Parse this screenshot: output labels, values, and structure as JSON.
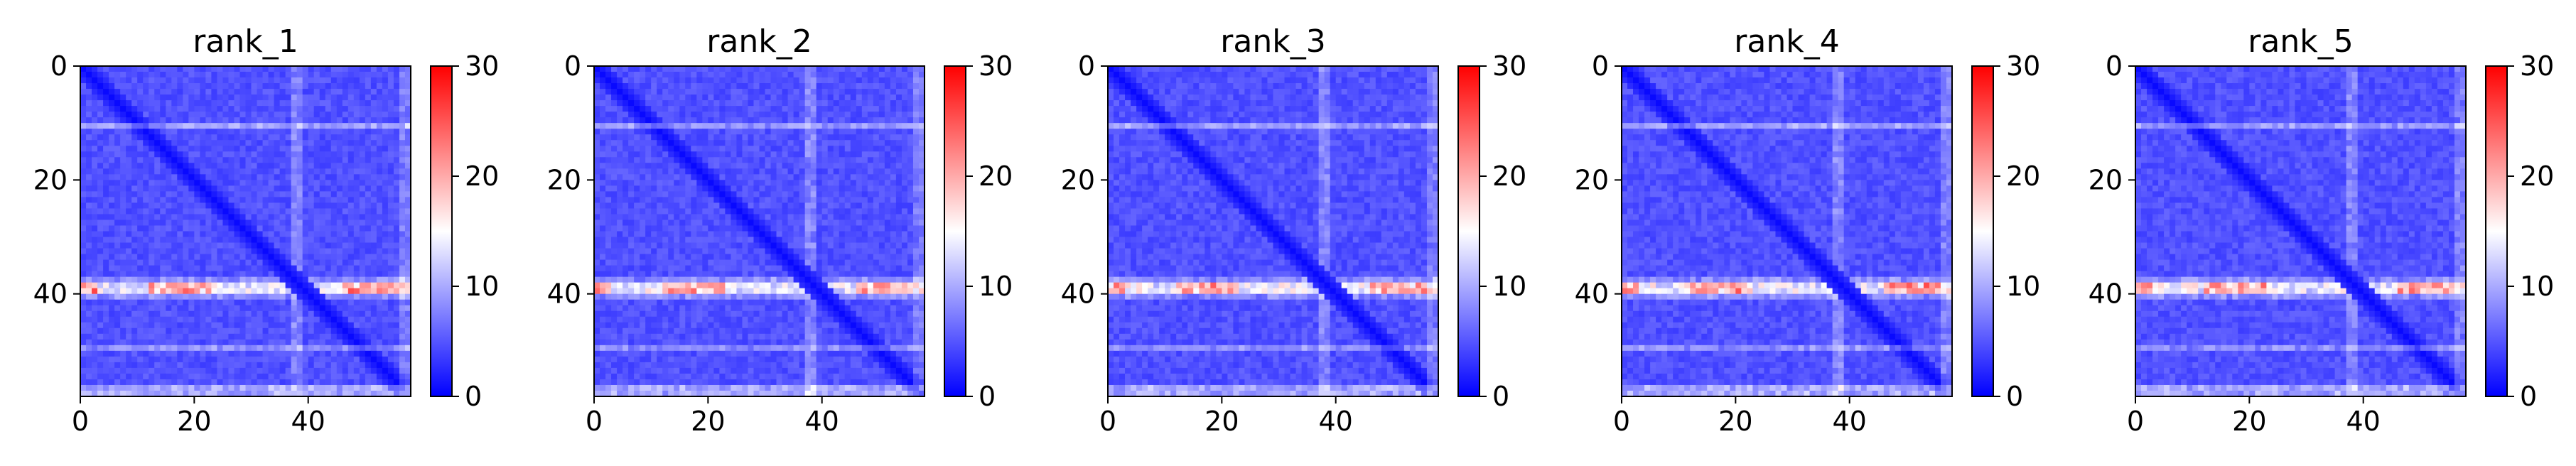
{
  "chart_data": [
    {
      "type": "heatmap",
      "title": "rank_1",
      "shape": [
        58,
        58
      ],
      "xticks": [
        0,
        20,
        40
      ],
      "yticks": [
        0,
        20,
        40
      ],
      "colorbar": {
        "ticks": [
          0,
          10,
          20,
          30
        ],
        "range": [
          0,
          30
        ],
        "colormap": "bwr"
      },
      "x_range": [
        0,
        58
      ],
      "y_range": [
        0,
        58
      ],
      "features": {
        "diagonal": "dark blue (~0-2)",
        "background": "blue (~3-6)",
        "bright_rows": [
          {
            "row": 38,
            "level": "white-red (10-22)"
          },
          {
            "row": 39,
            "level": "white-red (10-22)"
          },
          {
            "row": 10,
            "level": "light (7-11)"
          },
          {
            "row": 49,
            "level": "light (7-10)"
          },
          {
            "row": 56,
            "level": "light (8-12)"
          }
        ],
        "bright_cols": [
          {
            "col": 37,
            "level": "light (7-10)"
          }
        ]
      }
    },
    {
      "type": "heatmap",
      "title": "rank_2",
      "shape": [
        58,
        58
      ],
      "xticks": [
        0,
        20,
        40
      ],
      "yticks": [
        0,
        20,
        40
      ],
      "colorbar": {
        "ticks": [
          0,
          10,
          20,
          30
        ],
        "range": [
          0,
          30
        ],
        "colormap": "bwr"
      },
      "x_range": [
        0,
        58
      ],
      "y_range": [
        0,
        58
      ]
    },
    {
      "type": "heatmap",
      "title": "rank_3",
      "shape": [
        58,
        58
      ],
      "xticks": [
        0,
        20,
        40
      ],
      "yticks": [
        0,
        20,
        40
      ],
      "colorbar": {
        "ticks": [
          0,
          10,
          20,
          30
        ],
        "range": [
          0,
          30
        ],
        "colormap": "bwr"
      },
      "x_range": [
        0,
        58
      ],
      "y_range": [
        0,
        58
      ]
    },
    {
      "type": "heatmap",
      "title": "rank_4",
      "shape": [
        58,
        58
      ],
      "xticks": [
        0,
        20,
        40
      ],
      "yticks": [
        0,
        20,
        40
      ],
      "colorbar": {
        "ticks": [
          0,
          10,
          20,
          30
        ],
        "range": [
          0,
          30
        ],
        "colormap": "bwr"
      },
      "x_range": [
        0,
        58
      ],
      "y_range": [
        0,
        58
      ]
    },
    {
      "type": "heatmap",
      "title": "rank_5",
      "shape": [
        58,
        58
      ],
      "xticks": [
        0,
        20,
        40
      ],
      "yticks": [
        0,
        20,
        40
      ],
      "colorbar": {
        "ticks": [
          0,
          10,
          20,
          30
        ],
        "range": [
          0,
          30
        ],
        "colormap": "bwr"
      },
      "x_range": [
        0,
        58
      ],
      "y_range": [
        0,
        58
      ]
    }
  ],
  "colors": {
    "low": "#0000ff",
    "mid": "#ffffff",
    "high": "#ff0000",
    "axis": "#000000"
  }
}
